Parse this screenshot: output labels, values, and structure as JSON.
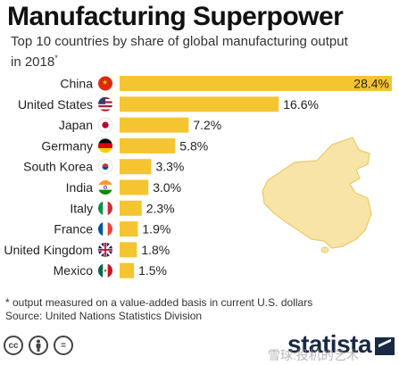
{
  "header": {
    "title": "Manufacturing Superpower",
    "subtitle": "Top 10 countries by share of global manufacturing output in 2018",
    "subtitle_mark": "*"
  },
  "chart_data": {
    "type": "bar",
    "orientation": "horizontal",
    "categories": [
      "China",
      "United States",
      "Japan",
      "Germany",
      "South Korea",
      "India",
      "Italy",
      "France",
      "United Kingdom",
      "Mexico"
    ],
    "values": [
      28.4,
      16.6,
      7.2,
      5.8,
      3.3,
      3.0,
      2.3,
      1.9,
      1.8,
      1.5
    ],
    "value_labels": [
      "28.4%",
      "16.6%",
      "7.2%",
      "5.8%",
      "3.3%",
      "3.0%",
      "2.3%",
      "1.9%",
      "1.8%",
      "1.5%"
    ],
    "unit": "%",
    "xlim": [
      0,
      28.4
    ],
    "grid": false,
    "bar_color": "#f5c431",
    "flags": [
      "china-flag",
      "usa-flag",
      "japan-flag",
      "germany-flag",
      "south-korea-flag",
      "india-flag",
      "italy-flag",
      "france-flag",
      "uk-flag",
      "mexico-flag"
    ],
    "illustration": "china-map"
  },
  "footer": {
    "footnote": "* output measured on a value-added basis in current U.S. dollars",
    "source": "Source: United Nations Statistics Division",
    "license_icons": [
      "cc-icon",
      "by-icon",
      "nd-icon"
    ],
    "brand": "statista",
    "watermark": "雪球:投机的艺术"
  }
}
